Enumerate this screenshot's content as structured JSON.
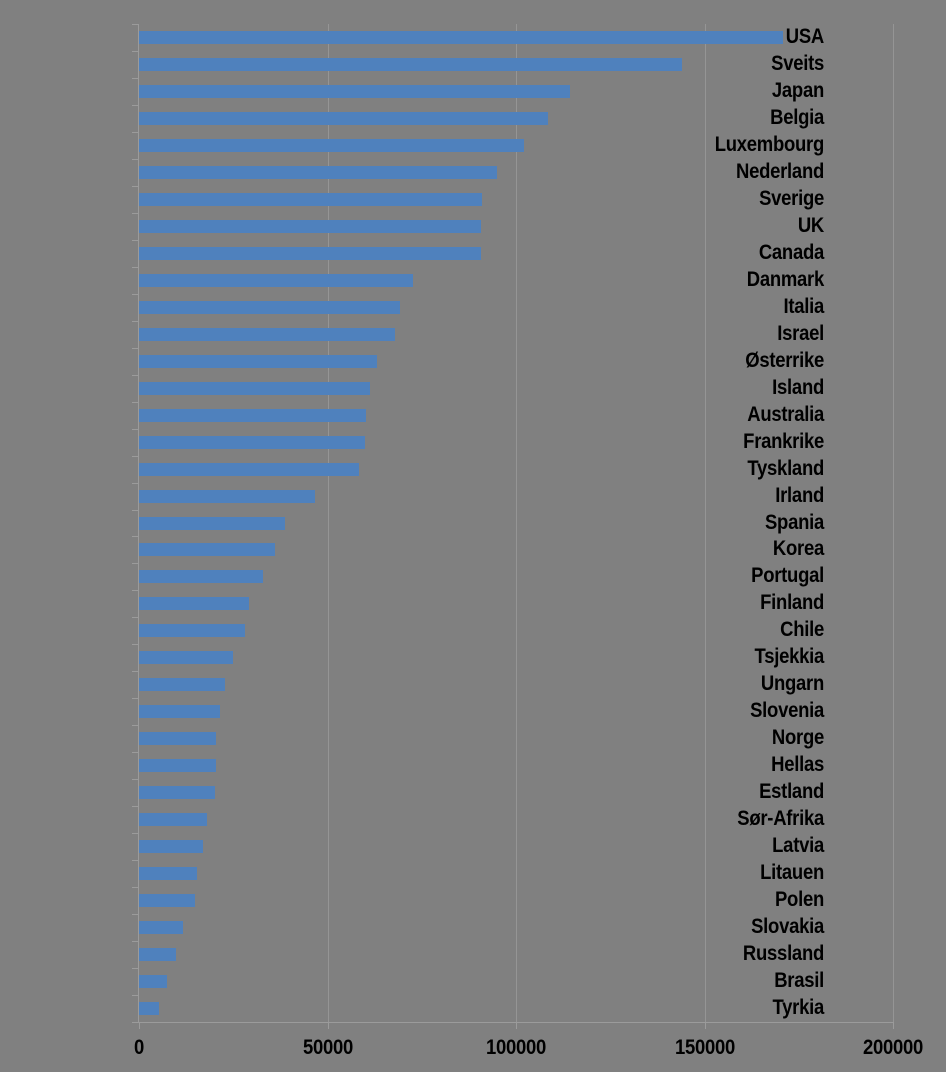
{
  "chart_data": {
    "type": "bar",
    "orientation": "horizontal",
    "title": "",
    "xlabel": "",
    "ylabel": "",
    "legend": "none",
    "grid": "vertical-major",
    "xlim": [
      0,
      200000
    ],
    "x_ticks": [
      0,
      50000,
      100000,
      150000,
      200000
    ],
    "x_tick_labels": [
      "0",
      "50000",
      "100000",
      "150000",
      "200000"
    ],
    "categories": [
      "USA",
      "Sveits",
      "Japan",
      "Belgia",
      "Luxembourg",
      "Nederland",
      "Sverige",
      "UK",
      "Canada",
      "Danmark",
      "Italia",
      "Israel",
      "Østerrike",
      "Island",
      "Australia",
      "Frankrike",
      "Tyskland",
      "Irland",
      "Spania",
      "Korea",
      "Portugal",
      "Finland",
      "Chile",
      "Tsjekkia",
      "Ungarn",
      "Slovenia",
      "Norge",
      "Hellas",
      "Estland",
      "Sør-Afrika",
      "Latvia",
      "Litauen",
      "Polen",
      "Slovakia",
      "Russland",
      "Brasil",
      "Tyrkia"
    ],
    "values": [
      170900,
      144100,
      114400,
      108400,
      102000,
      94900,
      91100,
      90800,
      90600,
      72600,
      69100,
      67900,
      63000,
      61200,
      60100,
      59900,
      58300,
      46700,
      38700,
      36000,
      32800,
      29100,
      28100,
      24900,
      22800,
      21500,
      20400,
      20300,
      20200,
      18100,
      16900,
      15500,
      14800,
      11700,
      9800,
      7500,
      5300
    ],
    "colors": {
      "background": "#808080",
      "bar": "#4F81BD",
      "gridline": "#959595",
      "axis": "#9B9B9B",
      "text": "#000000"
    }
  }
}
